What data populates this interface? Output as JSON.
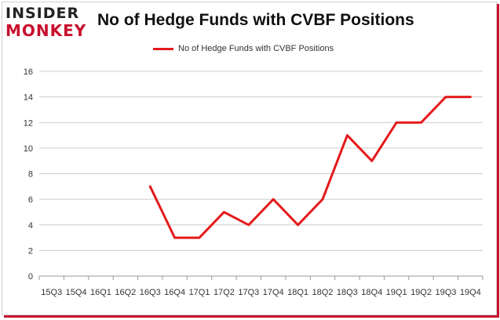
{
  "logo": {
    "line1": "INSIDER",
    "line2": "MONKEY"
  },
  "colors": {
    "series": "#e41a1c",
    "brand_red": "#c8102e",
    "grid": "#cccccc"
  },
  "chart_data": {
    "type": "line",
    "title": "No of Hedge Funds with CVBF Positions",
    "xlabel": "",
    "ylabel": "",
    "legend_position": "top-center",
    "grid": true,
    "categories": [
      "15Q3",
      "15Q4",
      "16Q1",
      "16Q2",
      "16Q3",
      "16Q4",
      "17Q1",
      "17Q2",
      "17Q3",
      "17Q4",
      "18Q1",
      "18Q2",
      "18Q3",
      "18Q4",
      "19Q1",
      "19Q2",
      "19Q3",
      "19Q4"
    ],
    "ylim": [
      0,
      16
    ],
    "yticks": [
      0,
      2,
      4,
      6,
      8,
      10,
      12,
      14,
      16
    ],
    "series": [
      {
        "name": "No of Hedge Funds with CVBF Positions",
        "values": [
          null,
          null,
          null,
          null,
          7,
          3,
          3,
          5,
          4,
          6,
          4,
          6,
          11,
          9,
          12,
          12,
          14,
          14
        ]
      }
    ]
  }
}
